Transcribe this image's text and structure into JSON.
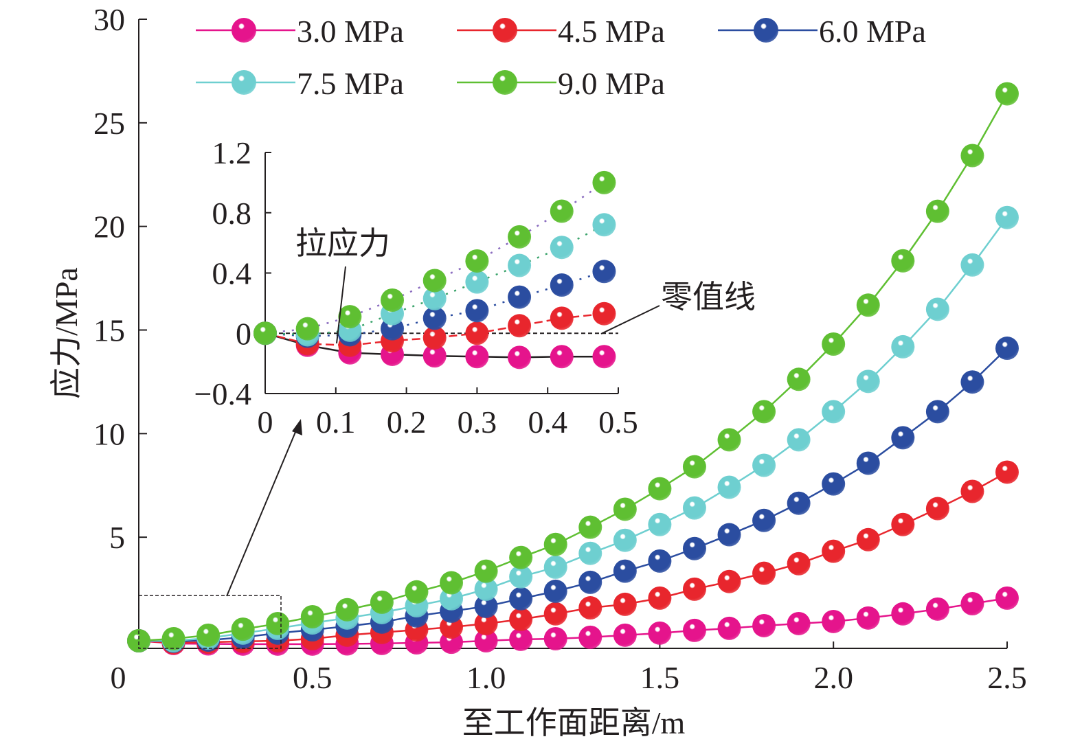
{
  "chart_data": [
    {
      "type": "line",
      "xlabel": "至工作面距离/m",
      "ylabel": "应力/MPa",
      "xlim": [
        0,
        2.5
      ],
      "ylim": [
        0,
        30
      ],
      "xticks": [
        "0",
        "0.5",
        "1.0",
        "1.5",
        "2.0",
        "2.5"
      ],
      "yticks": [
        "5",
        "10",
        "15",
        "20",
        "25",
        "30"
      ],
      "grid": false,
      "legend_position": "top",
      "x": [
        0,
        0.1,
        0.2,
        0.3,
        0.4,
        0.5,
        0.6,
        0.7,
        0.8,
        0.9,
        1.0,
        1.1,
        1.2,
        1.3,
        1.4,
        1.5,
        1.6,
        1.7,
        1.8,
        1.9,
        2.0,
        2.1,
        2.2,
        2.3,
        2.4,
        2.5
      ],
      "series": [
        {
          "name": "3.0 MPa",
          "color": "#e5148c",
          "values": [
            0,
            -0.13,
            -0.15,
            -0.16,
            -0.16,
            -0.16,
            -0.15,
            -0.13,
            -0.1,
            -0.07,
            0,
            0.07,
            0.1,
            0.17,
            0.27,
            0.37,
            0.5,
            0.6,
            0.73,
            0.83,
            0.93,
            1.1,
            1.3,
            1.53,
            1.79,
            2.06
          ]
        },
        {
          "name": "4.5 MPa",
          "color": "#e8262d",
          "values": [
            0,
            -0.1,
            -0.07,
            -0.03,
            0,
            0.1,
            0.27,
            0.4,
            0.53,
            0.66,
            0.83,
            1.03,
            1.3,
            1.59,
            1.76,
            2.06,
            2.49,
            2.86,
            3.26,
            3.72,
            4.32,
            4.88,
            5.61,
            6.38,
            7.21,
            8.14
          ]
        },
        {
          "name": "6.0 MPa",
          "color": "#2b4da0",
          "values": [
            0,
            -0.03,
            0.03,
            0.17,
            0.37,
            0.53,
            0.7,
            0.9,
            1.2,
            1.43,
            1.66,
            2.03,
            2.39,
            2.82,
            3.36,
            3.85,
            4.45,
            5.12,
            5.81,
            6.64,
            7.57,
            8.57,
            9.8,
            11.06,
            12.49,
            14.12
          ]
        },
        {
          "name": "7.5 MPa",
          "color": "#6ecfd0",
          "values": [
            0,
            0,
            0.13,
            0.37,
            0.6,
            0.86,
            1.1,
            1.36,
            1.69,
            2.03,
            2.49,
            3.09,
            3.55,
            4.22,
            4.85,
            5.61,
            6.41,
            7.41,
            8.47,
            9.7,
            11.06,
            12.52,
            14.19,
            16.0,
            18.14,
            20.43
          ]
        },
        {
          "name": "9.0 MPa",
          "color": "#5fbf32",
          "values": [
            0,
            0.1,
            0.27,
            0.56,
            0.83,
            1.16,
            1.5,
            1.86,
            2.36,
            2.8,
            3.36,
            4.02,
            4.65,
            5.48,
            6.35,
            7.34,
            8.4,
            9.7,
            11.06,
            12.62,
            14.32,
            16.2,
            18.34,
            20.73,
            23.42,
            26.4
          ]
        }
      ]
    },
    {
      "type": "line",
      "inset": true,
      "xlim": [
        0,
        0.5
      ],
      "ylim": [
        -0.4,
        1.2
      ],
      "xticks": [
        "0",
        "0.1",
        "0.2",
        "0.3",
        "0.4",
        "0.5"
      ],
      "yticks": [
        "−0.4",
        "0",
        "0.4",
        "0.8",
        "1.2"
      ],
      "x": [
        0,
        0.06,
        0.12,
        0.18,
        0.24,
        0.3,
        0.36,
        0.42,
        0.48
      ],
      "series": [
        {
          "color": "#e5148c",
          "line_color": "#231f20",
          "values": [
            0,
            -0.08,
            -0.13,
            -0.14,
            -0.15,
            -0.155,
            -0.16,
            -0.155,
            -0.155
          ]
        },
        {
          "color": "#e8262d",
          "line_color": "#e8262d",
          "values": [
            0,
            -0.07,
            -0.08,
            -0.05,
            -0.03,
            0,
            0.05,
            0.1,
            0.13
          ]
        },
        {
          "color": "#2b4da0",
          "line_color": "#2b4da0",
          "values": [
            0,
            -0.02,
            -0.01,
            0.03,
            0.1,
            0.15,
            0.24,
            0.32,
            0.41
          ]
        },
        {
          "color": "#6ecfd0",
          "line_color": "#3aa36b",
          "values": [
            0,
            -0.01,
            0.02,
            0.13,
            0.23,
            0.34,
            0.45,
            0.57,
            0.72
          ]
        },
        {
          "color": "#5fbf32",
          "line_color": "#8a6bbf",
          "values": [
            0,
            0.03,
            0.11,
            0.22,
            0.35,
            0.48,
            0.64,
            0.81,
            1.0
          ]
        }
      ],
      "zero_line": 0,
      "annotations": {
        "tension": "拉应力",
        "zero_line": "零值线"
      }
    }
  ]
}
